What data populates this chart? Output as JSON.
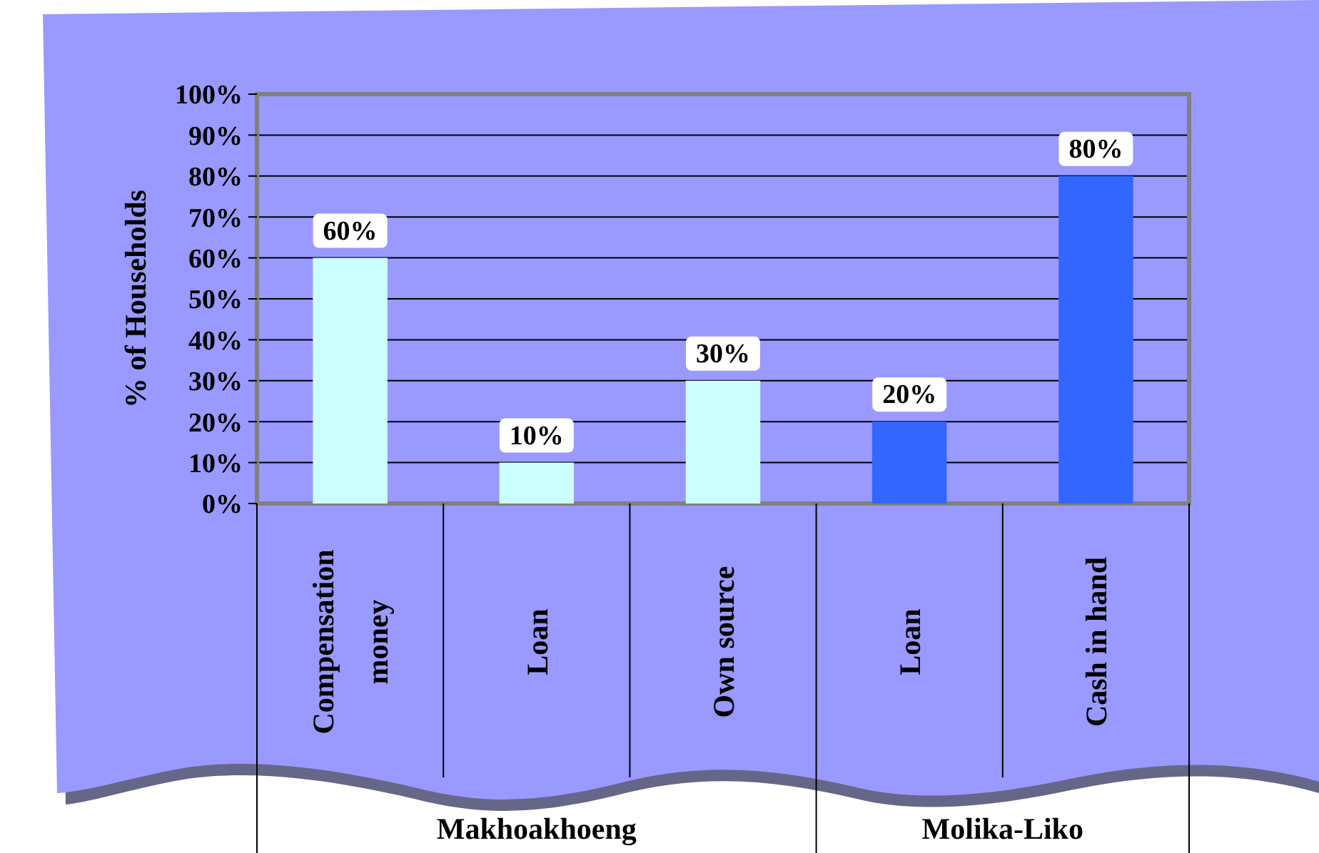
{
  "chart_data": {
    "type": "bar",
    "ylabel": "% of Households",
    "categories": [
      "Compensation money",
      "Loan",
      "Own source",
      "Loan",
      "Cash in hand"
    ],
    "values": [
      60,
      10,
      30,
      20,
      80
    ],
    "value_labels": [
      "60%",
      "10%",
      "30%",
      "20%",
      "80%"
    ],
    "colors": [
      "#ccffff",
      "#ccffff",
      "#ccffff",
      "#3366ff",
      "#3366ff"
    ],
    "annotations": [
      "Makhoakhoeng",
      "Molika-Liko"
    ],
    "grid": "y",
    "ylim": [
      0,
      100
    ],
    "yticks": [
      {
        "value": 0,
        "label": "0%"
      },
      {
        "value": 10,
        "label": "10%"
      },
      {
        "value": 20,
        "label": "20%"
      },
      {
        "value": 30,
        "label": "30%"
      },
      {
        "value": 40,
        "label": "40%"
      },
      {
        "value": 50,
        "label": "50%"
      },
      {
        "value": 60,
        "label": "60%"
      },
      {
        "value": 70,
        "label": "70%"
      },
      {
        "value": 80,
        "label": "80%"
      },
      {
        "value": 90,
        "label": "90%"
      },
      {
        "value": 100,
        "label": "100%"
      }
    ]
  }
}
